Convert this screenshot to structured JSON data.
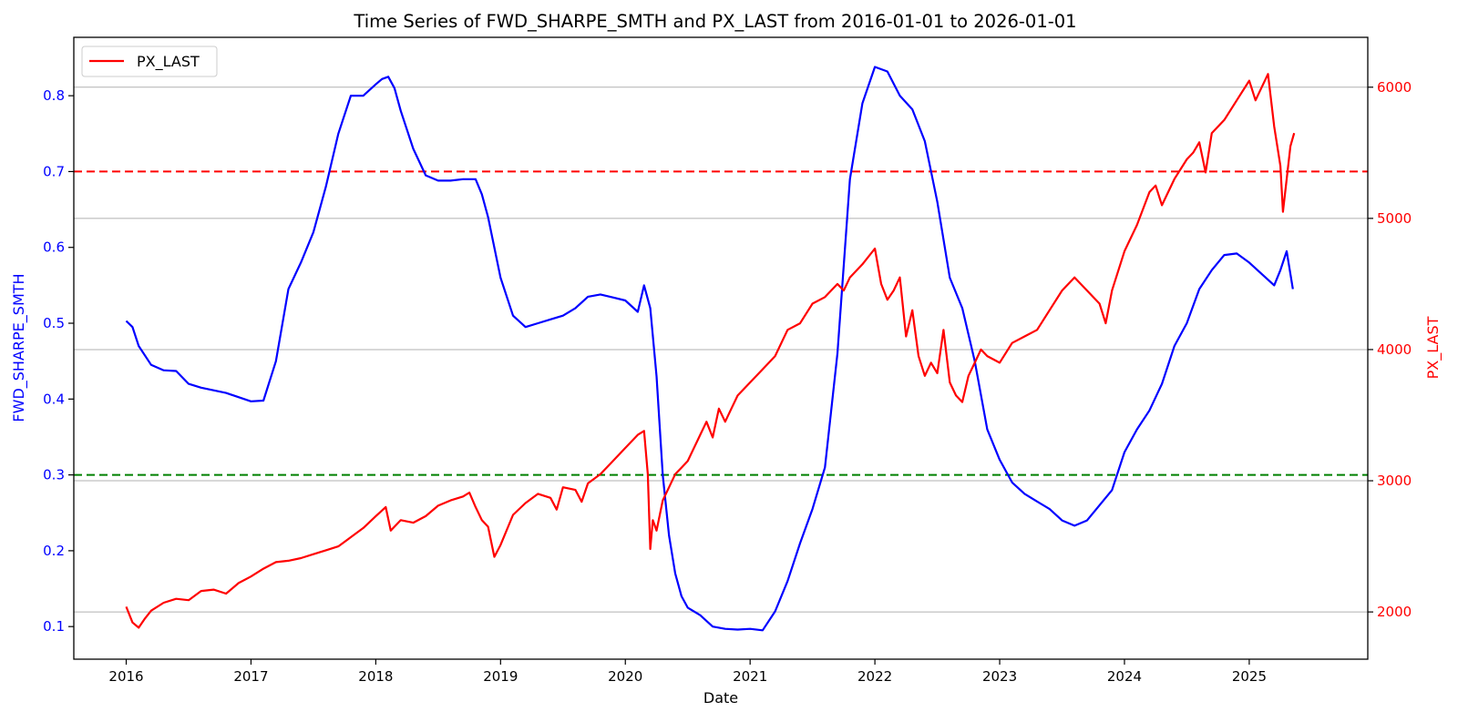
{
  "chart_data": {
    "type": "line",
    "title": "Time Series of FWD_SHARPE_SMTH and PX_LAST from 2016-01-01 to 2026-01-01",
    "xlabel": "Date",
    "ylabel_left": "FWD_SHARPE_SMTH",
    "ylabel_right": "PX_LAST",
    "xlim": [
      2015.58,
      2025.95
    ],
    "ylim_left": [
      0.057,
      0.877
    ],
    "ylim_right": [
      1640,
      6380
    ],
    "x_ticks": [
      2016,
      2017,
      2018,
      2019,
      2020,
      2021,
      2022,
      2023,
      2024,
      2025
    ],
    "x_tick_labels": [
      "2016",
      "2017",
      "2018",
      "2019",
      "2020",
      "2021",
      "2022",
      "2023",
      "2024",
      "2025"
    ],
    "y_left_ticks": [
      0.1,
      0.2,
      0.3,
      0.4,
      0.5,
      0.6,
      0.7,
      0.8
    ],
    "y_left_tick_labels": [
      "0.1",
      "0.2",
      "0.3",
      "0.4",
      "0.5",
      "0.6",
      "0.7",
      "0.8"
    ],
    "y_right_ticks": [
      2000,
      3000,
      4000,
      5000,
      6000
    ],
    "y_right_tick_labels": [
      "2000",
      "3000",
      "4000",
      "5000",
      "6000"
    ],
    "grid": "horizontal lines at right-axis ticks",
    "legend": {
      "position": "top-left",
      "entries": [
        "PX_LAST"
      ]
    },
    "colors": {
      "left_series": "#0000ff",
      "right_series": "#ff0000",
      "red_ref": "#ff0000",
      "green_ref": "#008000",
      "grid": "#b0b0b0"
    },
    "reference_lines": [
      {
        "axis": "left",
        "value": 0.7,
        "color": "#ff0000",
        "style": "dashed"
      },
      {
        "axis": "left",
        "value": 0.3,
        "color": "#008000",
        "style": "dashed"
      }
    ],
    "series": [
      {
        "axis": "left",
        "x": [
          2016.0,
          2016.05,
          2016.1,
          2016.2,
          2016.3,
          2016.4,
          2016.5,
          2016.6,
          2016.8,
          2017.0,
          2017.1,
          2017.2,
          2017.3,
          2017.4,
          2017.5,
          2017.6,
          2017.7,
          2017.8,
          2017.9,
          2018.0,
          2018.05,
          2018.1,
          2018.15,
          2018.2,
          2018.3,
          2018.4,
          2018.5,
          2018.6,
          2018.7,
          2018.8,
          2018.85,
          2018.9,
          2019.0,
          2019.1,
          2019.2,
          2019.3,
          2019.4,
          2019.5,
          2019.6,
          2019.7,
          2019.8,
          2019.9,
          2020.0,
          2020.1,
          2020.15,
          2020.2,
          2020.25,
          2020.3,
          2020.35,
          2020.4,
          2020.45,
          2020.5,
          2020.6,
          2020.7,
          2020.8,
          2020.9,
          2021.0,
          2021.1,
          2021.2,
          2021.3,
          2021.4,
          2021.5,
          2021.6,
          2021.7,
          2021.8,
          2021.9,
          2022.0,
          2022.1,
          2022.2,
          2022.3,
          2022.4,
          2022.5,
          2022.6,
          2022.7,
          2022.8,
          2022.9,
          2023.0,
          2023.1,
          2023.2,
          2023.3,
          2023.4,
          2023.5,
          2023.6,
          2023.7,
          2023.8,
          2023.9,
          2024.0,
          2024.1,
          2024.2,
          2024.3,
          2024.4,
          2024.5,
          2024.6,
          2024.7,
          2024.8,
          2024.9,
          2025.0,
          2025.1,
          2025.2,
          2025.25,
          2025.3,
          2025.35
        ],
        "values": [
          0.503,
          0.495,
          0.47,
          0.445,
          0.438,
          0.437,
          0.42,
          0.415,
          0.408,
          0.397,
          0.398,
          0.45,
          0.545,
          0.58,
          0.62,
          0.68,
          0.75,
          0.8,
          0.8,
          0.815,
          0.822,
          0.825,
          0.81,
          0.78,
          0.73,
          0.695,
          0.688,
          0.688,
          0.69,
          0.69,
          0.67,
          0.64,
          0.56,
          0.51,
          0.495,
          0.5,
          0.505,
          0.51,
          0.52,
          0.535,
          0.538,
          0.534,
          0.53,
          0.515,
          0.55,
          0.52,
          0.43,
          0.3,
          0.22,
          0.17,
          0.14,
          0.125,
          0.115,
          0.1,
          0.097,
          0.096,
          0.097,
          0.095,
          0.12,
          0.16,
          0.21,
          0.255,
          0.31,
          0.46,
          0.69,
          0.79,
          0.838,
          0.832,
          0.8,
          0.782,
          0.74,
          0.66,
          0.56,
          0.52,
          0.45,
          0.36,
          0.32,
          0.29,
          0.275,
          0.265,
          0.255,
          0.24,
          0.233,
          0.24,
          0.26,
          0.28,
          0.33,
          0.36,
          0.385,
          0.42,
          0.47,
          0.5,
          0.545,
          0.57,
          0.59,
          0.592,
          0.58,
          0.565,
          0.55,
          0.57,
          0.595,
          0.545
        ]
      },
      {
        "name": "PX_LAST",
        "axis": "right",
        "x": [
          2016.0,
          2016.05,
          2016.1,
          2016.15,
          2016.2,
          2016.3,
          2016.4,
          2016.5,
          2016.6,
          2016.7,
          2016.8,
          2016.9,
          2017.0,
          2017.1,
          2017.2,
          2017.3,
          2017.4,
          2017.5,
          2017.6,
          2017.7,
          2017.8,
          2017.9,
          2018.0,
          2018.08,
          2018.12,
          2018.2,
          2018.3,
          2018.4,
          2018.5,
          2018.6,
          2018.7,
          2018.75,
          2018.8,
          2018.85,
          2018.9,
          2018.95,
          2019.0,
          2019.1,
          2019.2,
          2019.3,
          2019.4,
          2019.45,
          2019.5,
          2019.6,
          2019.65,
          2019.7,
          2019.8,
          2019.9,
          2020.0,
          2020.1,
          2020.15,
          2020.18,
          2020.2,
          2020.22,
          2020.25,
          2020.3,
          2020.35,
          2020.4,
          2020.45,
          2020.5,
          2020.6,
          2020.65,
          2020.7,
          2020.75,
          2020.8,
          2020.85,
          2020.9,
          2021.0,
          2021.1,
          2021.2,
          2021.3,
          2021.4,
          2021.5,
          2021.6,
          2021.7,
          2021.75,
          2021.8,
          2021.9,
          2022.0,
          2022.05,
          2022.1,
          2022.15,
          2022.2,
          2022.25,
          2022.3,
          2022.35,
          2022.4,
          2022.45,
          2022.5,
          2022.55,
          2022.6,
          2022.65,
          2022.7,
          2022.75,
          2022.8,
          2022.85,
          2022.9,
          2023.0,
          2023.1,
          2023.2,
          2023.3,
          2023.4,
          2023.5,
          2023.55,
          2023.6,
          2023.7,
          2023.8,
          2023.85,
          2023.9,
          2024.0,
          2024.1,
          2024.2,
          2024.25,
          2024.3,
          2024.4,
          2024.5,
          2024.55,
          2024.6,
          2024.65,
          2024.7,
          2024.8,
          2024.9,
          2025.0,
          2025.05,
          2025.1,
          2025.15,
          2025.2,
          2025.25,
          2025.27,
          2025.3,
          2025.33,
          2025.36
        ],
        "values": [
          2040,
          1920,
          1880,
          1950,
          2010,
          2070,
          2100,
          2090,
          2160,
          2170,
          2140,
          2220,
          2270,
          2330,
          2380,
          2390,
          2410,
          2440,
          2470,
          2500,
          2570,
          2640,
          2730,
          2800,
          2620,
          2700,
          2680,
          2730,
          2810,
          2850,
          2880,
          2910,
          2800,
          2700,
          2650,
          2420,
          2510,
          2740,
          2830,
          2900,
          2870,
          2780,
          2950,
          2930,
          2840,
          2980,
          3050,
          3150,
          3250,
          3350,
          3380,
          3050,
          2480,
          2700,
          2620,
          2850,
          2950,
          3050,
          3100,
          3150,
          3350,
          3450,
          3330,
          3550,
          3450,
          3550,
          3650,
          3750,
          3850,
          3950,
          4150,
          4200,
          4350,
          4400,
          4500,
          4450,
          4550,
          4650,
          4770,
          4500,
          4380,
          4450,
          4550,
          4100,
          4300,
          3950,
          3800,
          3900,
          3820,
          4150,
          3750,
          3650,
          3600,
          3800,
          3900,
          4000,
          3950,
          3900,
          4050,
          4100,
          4150,
          4300,
          4450,
          4500,
          4550,
          4450,
          4350,
          4200,
          4450,
          4750,
          4950,
          5200,
          5250,
          5100,
          5300,
          5450,
          5500,
          5580,
          5350,
          5650,
          5750,
          5900,
          6050,
          5900,
          6000,
          6100,
          5700,
          5400,
          5050,
          5300,
          5550,
          5650
        ]
      }
    ]
  }
}
